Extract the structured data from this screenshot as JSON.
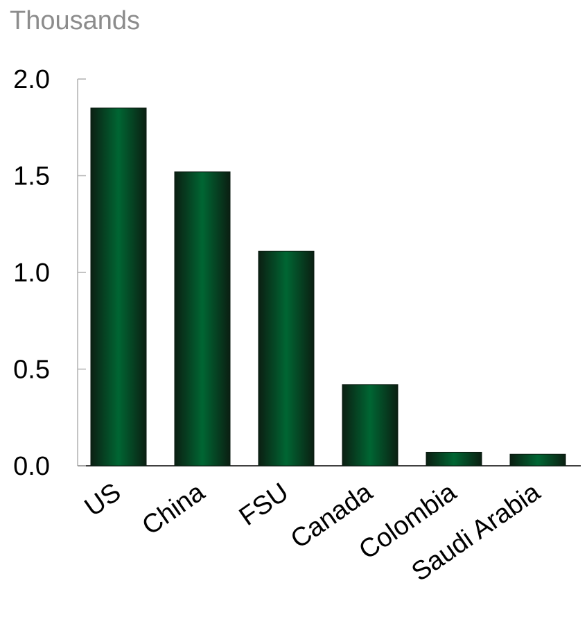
{
  "chart_data": {
    "type": "bar",
    "unit_label": "Thousands",
    "categories": [
      "US",
      "China",
      "FSU",
      "Canada",
      "Colombia",
      "Saudi Arabia"
    ],
    "values": [
      1.85,
      1.52,
      1.11,
      0.42,
      0.07,
      0.06
    ],
    "ylim": [
      0,
      2.0
    ],
    "yticks": [
      "0.0",
      "0.5",
      "1.0",
      "1.5",
      "2.0"
    ],
    "grid": false,
    "bar_color": "#006633",
    "bar_edge_color": "#0a1a10"
  }
}
